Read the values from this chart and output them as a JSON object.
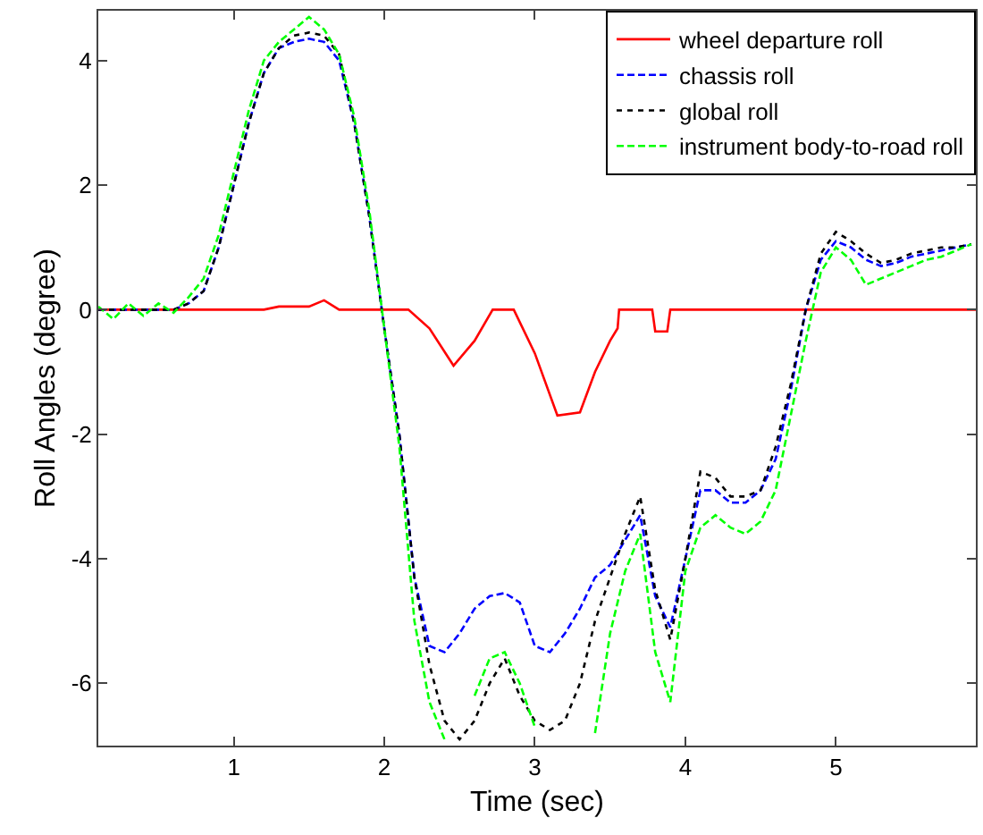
{
  "chart_data": {
    "type": "line",
    "xlabel": "Time (sec)",
    "ylabel": "Roll Angles (degree)",
    "x": [
      0.1,
      0.2,
      0.3,
      0.4,
      0.5,
      0.6,
      0.7,
      0.8,
      0.9,
      1.0,
      1.1,
      1.2,
      1.3,
      1.4,
      1.5,
      1.6,
      1.7,
      1.8,
      1.9,
      2.0,
      2.1,
      2.2,
      2.3,
      2.4,
      2.5,
      2.6,
      2.7,
      2.8,
      2.9,
      3.0,
      3.1,
      3.2,
      3.3,
      3.4,
      3.5,
      3.6,
      3.7,
      3.8,
      3.9,
      4.0,
      4.1,
      4.2,
      4.3,
      4.4,
      4.5,
      4.6,
      4.7,
      4.8,
      4.9,
      5.0,
      5.1,
      5.2,
      5.3,
      5.4,
      5.5,
      5.6,
      5.7,
      5.8,
      5.9
    ],
    "series": [
      {
        "name": "wheel departure roll",
        "color": "#ff0000",
        "line_style": "solid",
        "x": [
          0.1,
          1.2,
          1.3,
          1.4,
          1.5,
          1.6,
          1.7,
          2.16,
          2.3,
          2.46,
          2.6,
          2.72,
          2.86,
          3.0,
          3.15,
          3.3,
          3.4,
          3.5,
          3.55,
          3.56,
          3.78,
          3.8,
          3.88,
          3.9,
          5.93
        ],
        "values": [
          0,
          0,
          0.05,
          0.05,
          0.05,
          0.15,
          0,
          0,
          -0.3,
          -0.9,
          -0.5,
          0,
          0,
          -0.7,
          -1.7,
          -1.65,
          -1.0,
          -0.5,
          -0.3,
          0,
          0,
          -0.35,
          -0.35,
          0,
          0
        ]
      },
      {
        "name": "chassis roll",
        "color": "#0000ff",
        "line_style": "dashed",
        "values": [
          0,
          0,
          0,
          0,
          0,
          0,
          0.1,
          0.3,
          1.0,
          2.0,
          3.0,
          3.8,
          4.2,
          4.3,
          4.35,
          4.3,
          4.0,
          3.0,
          1.5,
          -0.3,
          -2.0,
          -4.3,
          -5.4,
          -5.5,
          -5.2,
          -4.8,
          -4.6,
          -4.55,
          -4.7,
          -5.4,
          -5.5,
          -5.2,
          -4.8,
          -4.3,
          -4.1,
          -3.7,
          -3.3,
          -4.6,
          -5.1,
          -4.0,
          -2.9,
          -2.9,
          -3.1,
          -3.1,
          -2.9,
          -2.4,
          -1.3,
          0,
          0.8,
          1.1,
          1.0,
          0.8,
          0.7,
          0.75,
          0.85,
          0.9,
          0.95,
          1.0,
          1.05
        ]
      },
      {
        "name": "global roll",
        "color": "#000000",
        "line_style": "dotted",
        "values": [
          0,
          0,
          0,
          0,
          0,
          0,
          0.1,
          0.3,
          1.0,
          2.0,
          3.0,
          3.8,
          4.2,
          4.4,
          4.45,
          4.4,
          4.1,
          3.0,
          1.5,
          -0.3,
          -2.0,
          -4.3,
          -5.7,
          -6.6,
          -6.9,
          -6.6,
          -6.0,
          -5.6,
          -6.2,
          -6.6,
          -6.75,
          -6.6,
          -6.0,
          -5.0,
          -4.3,
          -3.6,
          -3.0,
          -4.5,
          -5.3,
          -4.0,
          -2.6,
          -2.7,
          -3.0,
          -3.0,
          -2.9,
          -2.2,
          -1.2,
          0,
          0.9,
          1.25,
          1.1,
          0.9,
          0.75,
          0.8,
          0.9,
          0.95,
          1.0,
          1.0,
          1.05
        ]
      },
      {
        "name": "instrument body-to-road roll",
        "color": "#00ff00",
        "line_style": "dashed",
        "values": [
          0.05,
          -0.15,
          0.1,
          -0.1,
          0.1,
          -0.05,
          0.2,
          0.5,
          1.2,
          2.2,
          3.2,
          4.0,
          4.3,
          4.5,
          4.7,
          4.5,
          4.1,
          3.1,
          1.6,
          -0.3,
          -2.2,
          -5.0,
          -6.3,
          -6.9,
          null,
          -6.2,
          -5.6,
          -5.5,
          -6.0,
          -6.7,
          null,
          null,
          null,
          -6.8,
          -5.2,
          -4.2,
          -3.6,
          -5.5,
          -6.3,
          -4.2,
          -3.5,
          -3.3,
          -3.5,
          -3.6,
          -3.4,
          -2.9,
          -1.7,
          -0.5,
          0.6,
          1.0,
          0.8,
          0.4,
          0.5,
          0.6,
          0.7,
          0.8,
          0.85,
          0.95,
          1.05
        ]
      }
    ],
    "xlim": [
      0.1,
      5.93
    ],
    "ylim": [
      -7,
      4.8
    ],
    "xticks": [
      1,
      2,
      3,
      4,
      5
    ],
    "yticks": [
      -6,
      -4,
      -2,
      0,
      2,
      4
    ],
    "legend": "top right"
  }
}
